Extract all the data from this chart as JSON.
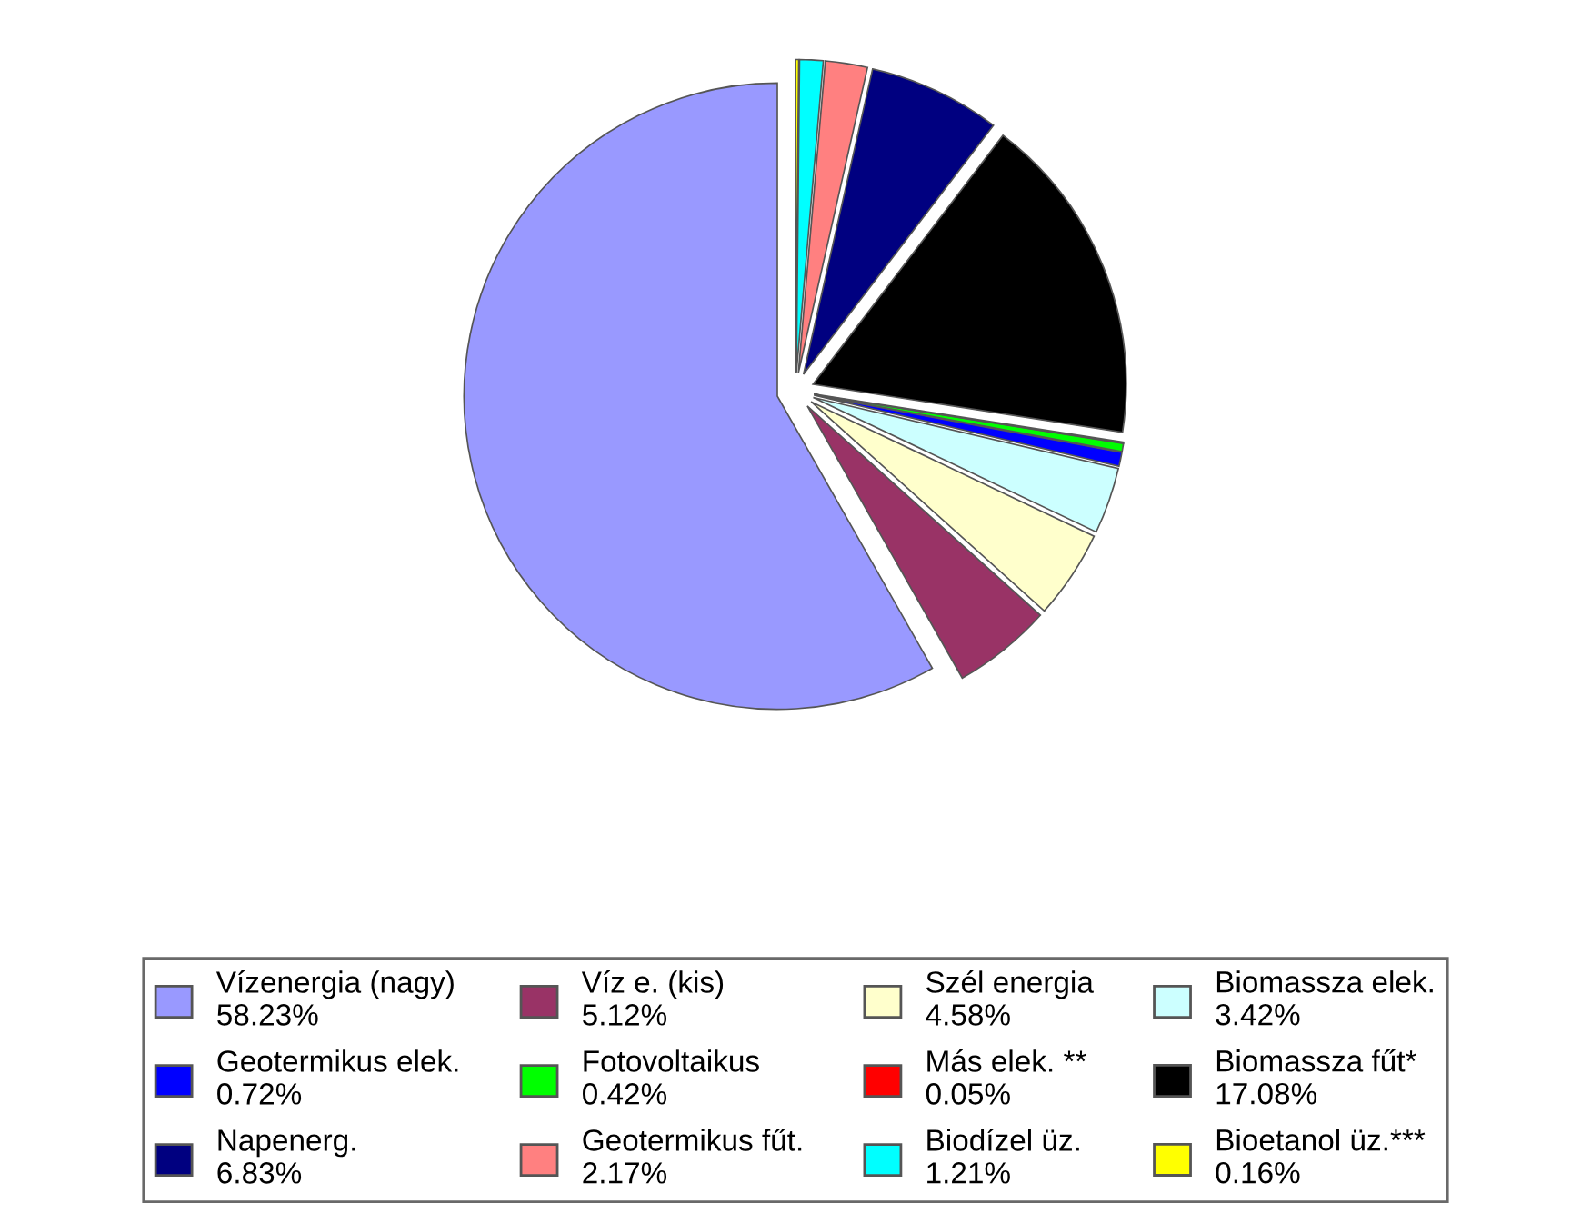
{
  "chart_data": {
    "type": "pie",
    "categories": [
      "Vízenergia (nagy)",
      "Víz e. (kis)",
      "Szél energia",
      "Biomassza elek.",
      "Geotermikus elek.",
      "Fotovoltaikus",
      "Más elek. **",
      "Biomassza fűt*",
      "Napenerg.",
      "Geotermikus fűt.",
      "Biodízel üz.",
      "Bioetanol üz.***"
    ],
    "values": [
      58.23,
      5.12,
      4.58,
      3.42,
      0.72,
      0.42,
      0.05,
      17.08,
      6.83,
      2.17,
      1.21,
      0.16
    ],
    "value_labels": [
      "58.23%",
      "5.12%",
      "4.58%",
      "3.42%",
      "0.72%",
      "0.42%",
      "0.05%",
      "17.08%",
      "6.83%",
      "2.17%",
      "1.21%",
      "0.16%"
    ],
    "colors": [
      "#9999ff",
      "#993366",
      "#ffffcc",
      "#ccffff",
      "#0000ff",
      "#00ff00",
      "#ff0000",
      "#000000",
      "#000080",
      "#ff8080",
      "#00ffff",
      "#ffff00"
    ],
    "legend": "bottom"
  }
}
